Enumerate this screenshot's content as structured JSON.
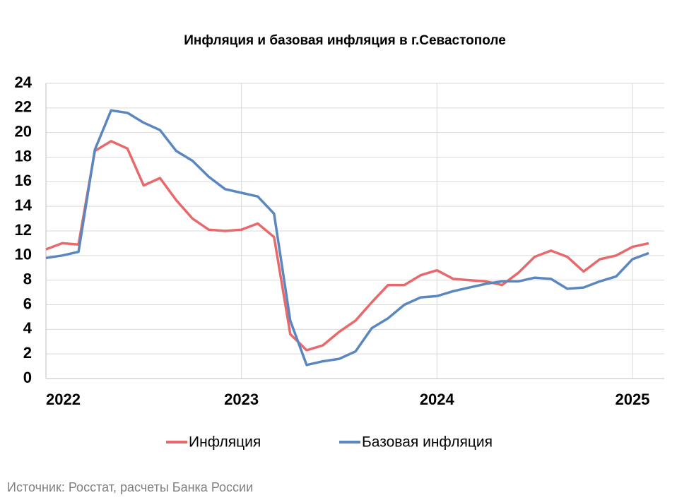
{
  "chart_data": {
    "type": "line",
    "title": "Инфляция и базовая инфляция в г.Севастополе",
    "categories": [
      "2022",
      null,
      null,
      null,
      null,
      null,
      null,
      null,
      null,
      null,
      null,
      null,
      "2023",
      null,
      null,
      null,
      null,
      null,
      null,
      null,
      null,
      null,
      null,
      null,
      "2024",
      null,
      null,
      null,
      null,
      null,
      null,
      null,
      null,
      null,
      null,
      null,
      "2025",
      null
    ],
    "series": [
      {
        "name": "Инфляция",
        "color": "#e8696b",
        "values": [
          10.5,
          11.0,
          10.9,
          18.5,
          19.3,
          18.7,
          15.7,
          16.3,
          14.5,
          13.0,
          12.1,
          12.0,
          12.1,
          12.6,
          11.5,
          3.6,
          2.3,
          2.7,
          3.8,
          4.7,
          6.2,
          7.6,
          7.6,
          8.4,
          8.8,
          8.1,
          8.0,
          7.9,
          7.6,
          8.6,
          9.9,
          10.4,
          9.9,
          8.7,
          9.7,
          10.0,
          10.7,
          11.0
        ]
      },
      {
        "name": "Базовая инфляция",
        "color": "#5b87c0",
        "values": [
          9.8,
          10.0,
          10.3,
          18.6,
          21.8,
          21.6,
          20.8,
          20.2,
          18.5,
          17.7,
          16.4,
          15.4,
          15.1,
          14.8,
          13.4,
          4.7,
          1.1,
          1.4,
          1.6,
          2.2,
          4.1,
          4.9,
          6.0,
          6.6,
          6.7,
          7.1,
          7.4,
          7.7,
          7.9,
          7.9,
          8.2,
          8.1,
          7.3,
          7.4,
          7.9,
          8.3,
          9.7,
          10.2
        ]
      }
    ],
    "ylim": [
      0,
      24
    ],
    "yticks": [
      0,
      2,
      4,
      6,
      8,
      10,
      12,
      14,
      16,
      18,
      20,
      22,
      24
    ],
    "grid": true,
    "legend": "bottom",
    "source": "Источник: Росстат, расчеты Банка России"
  }
}
